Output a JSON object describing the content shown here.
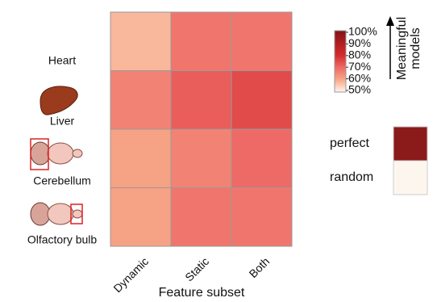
{
  "chart_data": {
    "type": "heatmap",
    "rows": [
      "Heart",
      "Liver",
      "Cerebellum",
      "Olfactory bulb"
    ],
    "columns": [
      "Dynamic",
      "Static",
      "Both"
    ],
    "values": [
      [
        58,
        68,
        68
      ],
      [
        66,
        72,
        75
      ],
      [
        61,
        66,
        70
      ],
      [
        61,
        68,
        68
      ]
    ],
    "x_label": "Feature subset",
    "clim": [
      50,
      100
    ],
    "colorscale": [
      "#fff5ee",
      "#f7a888",
      "#ee6a66",
      "#d32b2e",
      "#b01c20",
      "#80141a"
    ],
    "cticks": [
      {
        "value": 50,
        "label": "50%"
      },
      {
        "value": 60,
        "label": "60%"
      },
      {
        "value": 70,
        "label": "70%"
      },
      {
        "value": 80,
        "label": "80%"
      },
      {
        "value": 90,
        "label": "90%"
      },
      {
        "value": 100,
        "label": "100%"
      }
    ],
    "colorbar_label": [
      "Meaningful",
      "models"
    ],
    "legend": [
      {
        "label": "perfect",
        "color": "#8b1a1a"
      },
      {
        "label": "random",
        "color": "#fdf6ef"
      }
    ]
  }
}
